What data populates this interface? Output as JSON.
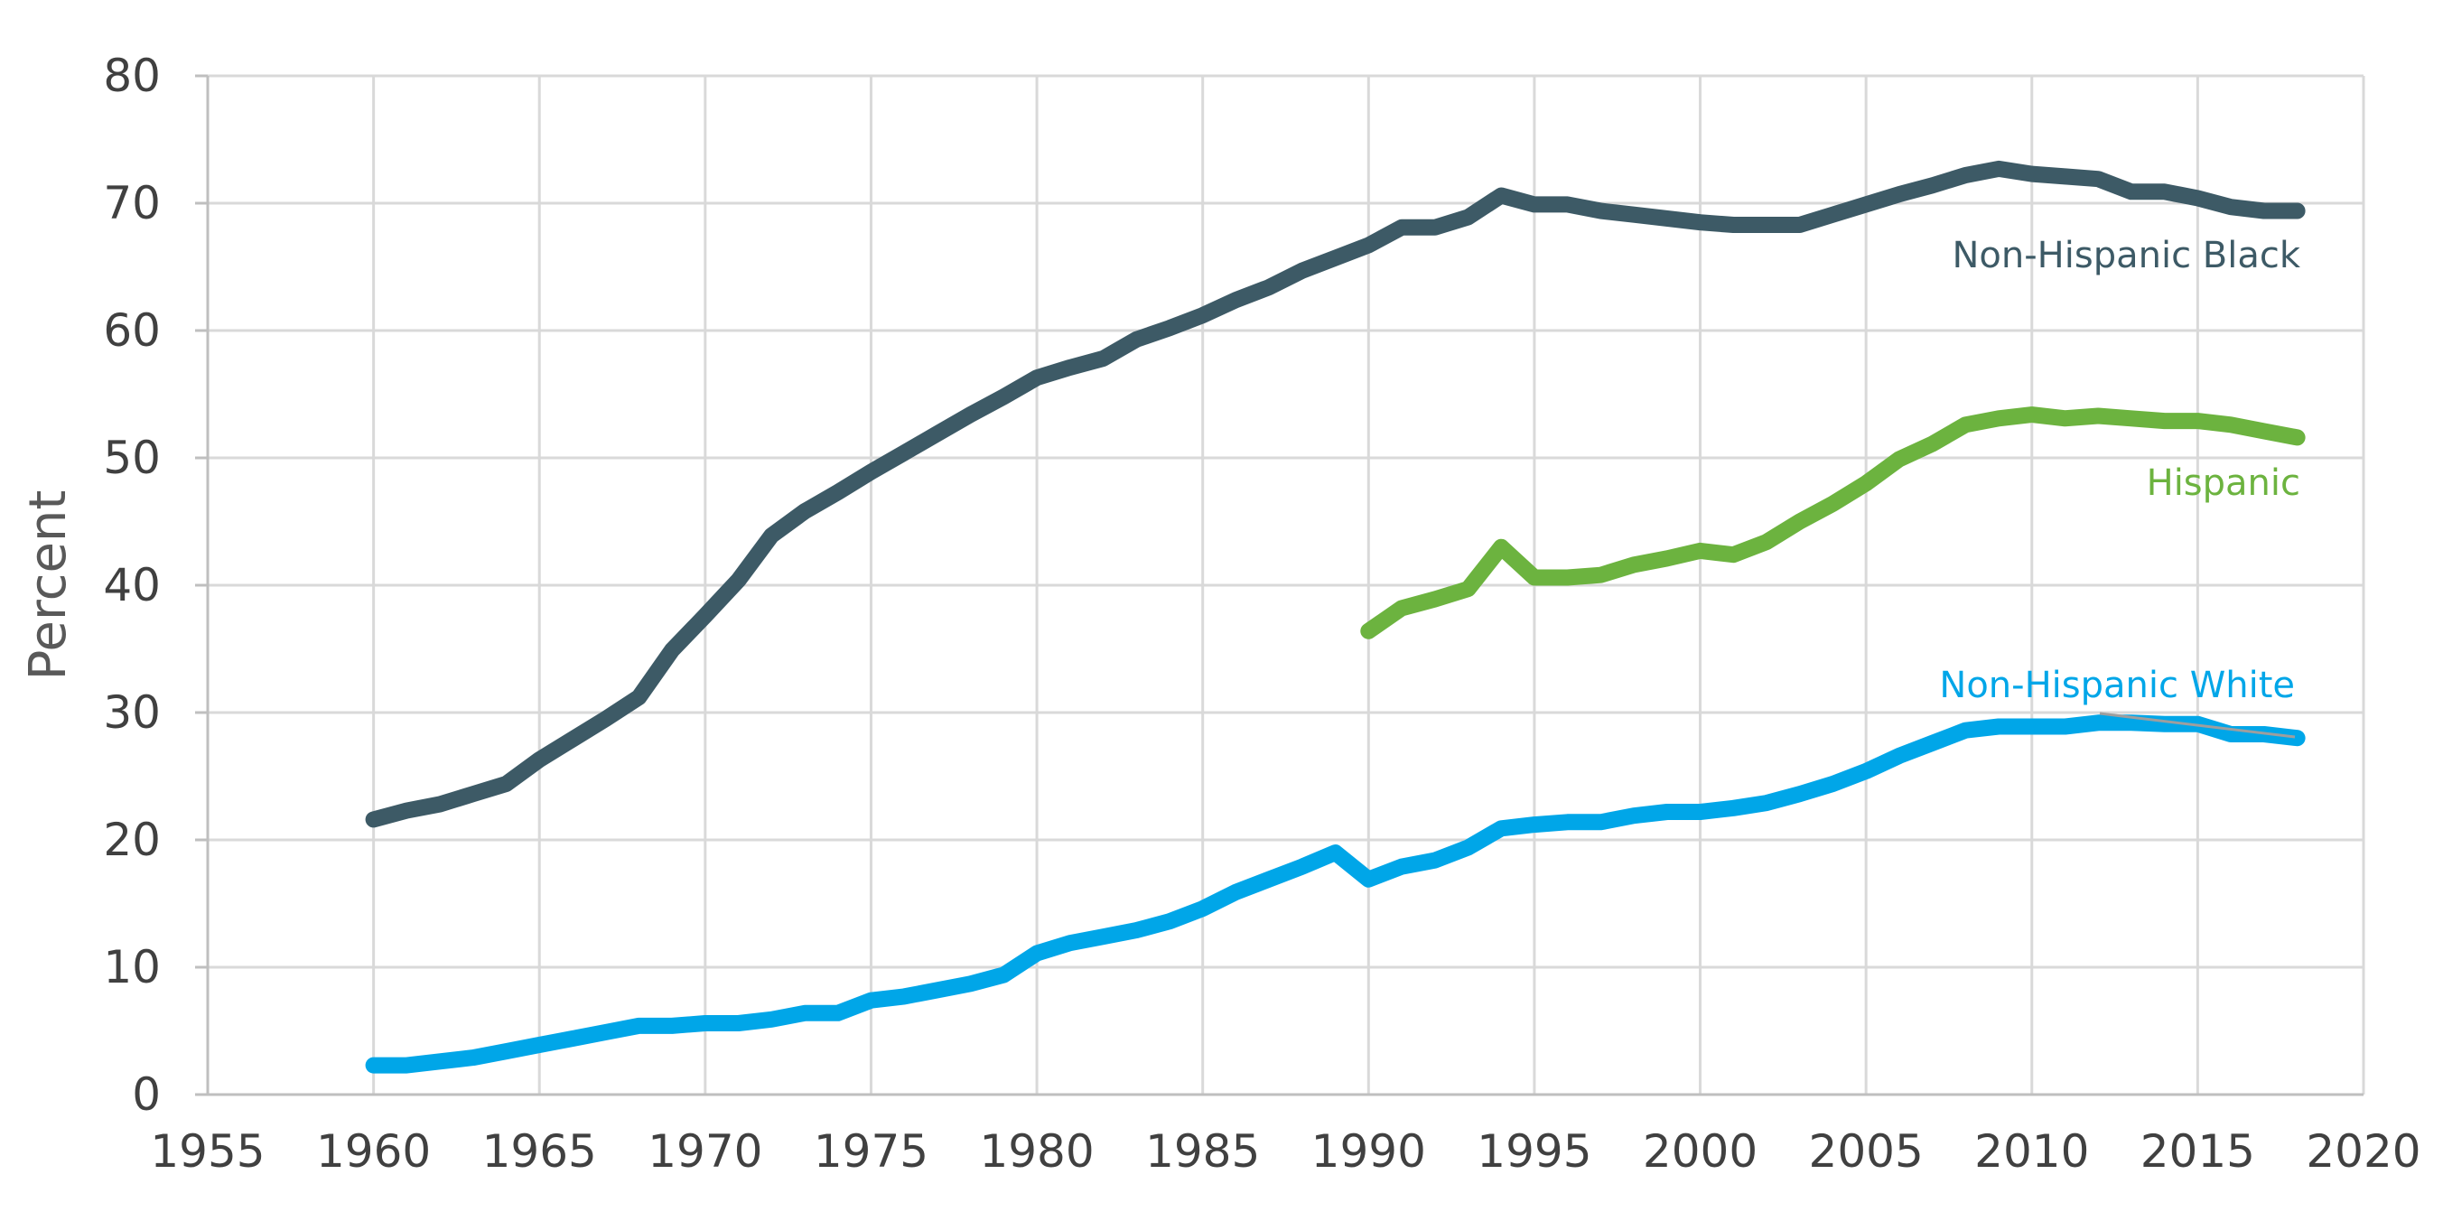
{
  "chart_data": {
    "type": "line",
    "title": "",
    "xlabel": "",
    "ylabel": "Percent",
    "xlim": [
      1955,
      2020
    ],
    "ylim": [
      0,
      80
    ],
    "xticks": [
      1955,
      1960,
      1965,
      1970,
      1975,
      1980,
      1985,
      1990,
      1995,
      2000,
      2005,
      2010,
      2015,
      2020
    ],
    "yticks": [
      0,
      10,
      20,
      30,
      40,
      50,
      60,
      70,
      80
    ],
    "grid": true,
    "legend": "none",
    "series": [
      {
        "name": "Non-Hispanic Black",
        "color": "#3d5a66",
        "x": [
          1960,
          1961,
          1962,
          1963,
          1964,
          1965,
          1966,
          1967,
          1968,
          1969,
          1970,
          1971,
          1972,
          1973,
          1974,
          1975,
          1976,
          1977,
          1978,
          1979,
          1980,
          1981,
          1982,
          1983,
          1984,
          1985,
          1986,
          1987,
          1988,
          1989,
          1990,
          1991,
          1992,
          1993,
          1994,
          1995,
          1996,
          1997,
          1998,
          1999,
          2000,
          2001,
          2002,
          2003,
          2004,
          2005,
          2006,
          2007,
          2008,
          2009,
          2010,
          2011,
          2012,
          2013,
          2014,
          2015,
          2016,
          2017,
          2018
        ],
        "values": [
          21.6,
          22.3,
          22.8,
          23.6,
          24.4,
          26.3,
          27.9,
          29.5,
          31.2,
          34.9,
          37.6,
          40.4,
          43.9,
          45.8,
          47.3,
          48.9,
          50.4,
          51.9,
          53.4,
          54.8,
          56.3,
          57.1,
          57.8,
          59.3,
          60.2,
          61.2,
          62.4,
          63.4,
          64.7,
          65.7,
          66.7,
          68.1,
          68.1,
          68.9,
          70.6,
          69.9,
          69.9,
          69.4,
          69.1,
          68.8,
          68.5,
          68.3,
          68.3,
          68.3,
          69.1,
          69.9,
          70.7,
          71.4,
          72.2,
          72.7,
          72.3,
          72.1,
          71.9,
          70.9,
          70.9,
          70.4,
          69.7,
          69.4,
          69.4
        ]
      },
      {
        "name": "Hispanic",
        "color": "#6cb33f",
        "x": [
          1990,
          1991,
          1992,
          1993,
          1994,
          1995,
          1996,
          1997,
          1998,
          1999,
          2000,
          2001,
          2002,
          2003,
          2004,
          2005,
          2006,
          2007,
          2008,
          2009,
          2010,
          2011,
          2012,
          2013,
          2014,
          2015,
          2016,
          2017,
          2018
        ],
        "values": [
          36.4,
          38.2,
          38.9,
          39.7,
          43.0,
          40.6,
          40.6,
          40.8,
          41.6,
          42.1,
          42.7,
          42.4,
          43.4,
          45.0,
          46.4,
          48.0,
          49.9,
          51.1,
          52.6,
          53.1,
          53.4,
          53.1,
          53.3,
          53.1,
          52.9,
          52.9,
          52.6,
          52.1,
          51.6
        ]
      },
      {
        "name": "Non-Hispanic White",
        "color": "#00a6e8",
        "x": [
          1960,
          1961,
          1962,
          1963,
          1964,
          1965,
          1966,
          1967,
          1968,
          1969,
          1970,
          1971,
          1972,
          1973,
          1974,
          1975,
          1976,
          1977,
          1978,
          1979,
          1980,
          1981,
          1982,
          1983,
          1984,
          1985,
          1986,
          1987,
          1988,
          1989,
          1990,
          1991,
          1992,
          1993,
          1994,
          1995,
          1996,
          1997,
          1998,
          1999,
          2000,
          2001,
          2002,
          2003,
          2004,
          2005,
          2006,
          2007,
          2008,
          2009,
          2010,
          2011,
          2012,
          2013,
          2014,
          2015,
          2016,
          2017,
          2018
        ],
        "values": [
          2.3,
          2.3,
          2.6,
          2.9,
          3.4,
          3.9,
          4.4,
          4.9,
          5.4,
          5.4,
          5.6,
          5.6,
          5.9,
          6.4,
          6.4,
          7.4,
          7.7,
          8.2,
          8.7,
          9.4,
          11.1,
          11.9,
          12.4,
          12.9,
          13.6,
          14.6,
          15.9,
          16.9,
          17.9,
          19.0,
          16.9,
          17.9,
          18.4,
          19.4,
          20.9,
          21.2,
          21.4,
          21.4,
          21.9,
          22.2,
          22.2,
          22.5,
          22.9,
          23.6,
          24.4,
          25.4,
          26.6,
          27.6,
          28.6,
          28.9,
          28.9,
          28.9,
          29.2,
          29.2,
          29.1,
          29.1,
          28.3,
          28.3,
          28.0
        ]
      }
    ]
  }
}
